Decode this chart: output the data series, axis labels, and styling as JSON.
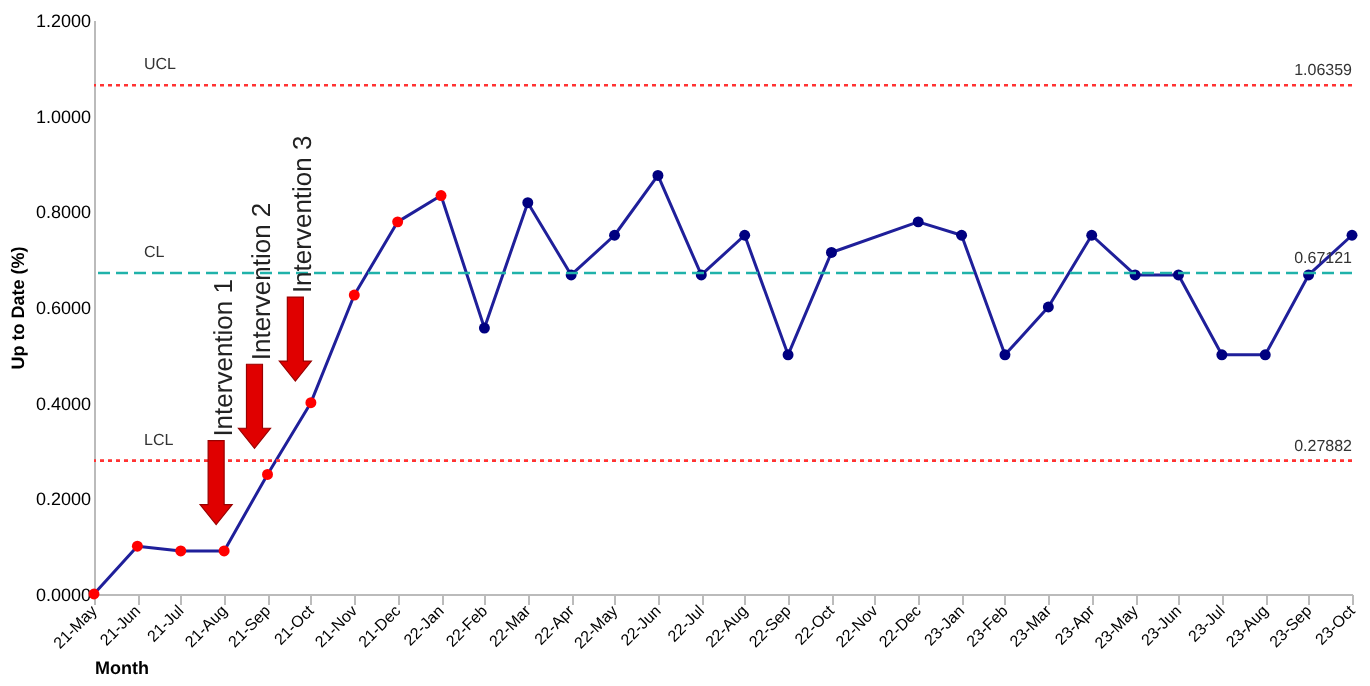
{
  "chart_data": {
    "type": "line",
    "xlabel": "Month",
    "ylabel": "Up to Date (%)",
    "categories": [
      "21-May",
      "21-Jun",
      "21-Jul",
      "21-Aug",
      "21-Sep",
      "21-Oct",
      "21-Nov",
      "21-Dec",
      "22-Jan",
      "22-Feb",
      "22-Mar",
      "22-Apr",
      "22-May",
      "22-Jun",
      "22-Jul",
      "22-Aug",
      "22-Sep",
      "22-Oct",
      "22-Nov",
      "22-Dec",
      "23-Jan",
      "23-Feb",
      "23-Mar",
      "23-Apr",
      "23-May",
      "23-Jun",
      "23-Jul",
      "23-Aug",
      "23-Sep",
      "23-Oct"
    ],
    "series": [
      {
        "color": "#1f1f9a",
        "colors": [
          "#ff0000",
          "#ff0000",
          "#ff0000",
          "#ff0000",
          "#ff0000",
          "#ff0000",
          "#ff0000",
          "#ff0000",
          "#ff0000",
          "#000080",
          "#000080",
          "#000080",
          "#000080",
          "#000080",
          "#000080",
          "#000080",
          "#000080",
          "#000080",
          null,
          "#000080",
          "#000080",
          "#000080",
          "#000080",
          "#000080",
          "#000080",
          "#000080",
          "#000080",
          "#000080",
          "#000080",
          "#000080"
        ],
        "values": [
          0,
          0.1,
          0.09,
          0.09,
          0.25,
          0.4,
          0.625,
          0.778,
          0.833,
          0.556,
          0.818,
          0.667,
          0.75,
          0.875,
          0.667,
          0.75,
          0.5,
          0.714,
          null,
          0.778,
          0.75,
          0.5,
          0.6,
          0.75,
          0.667,
          0.667,
          0.5,
          0.5,
          0.667,
          0.75
        ]
      }
    ],
    "ylim": [
      0,
      1.2
    ],
    "yticks": [
      {
        "value": 0,
        "label": "0.0000"
      },
      {
        "value": 0.2,
        "label": "0.2000"
      },
      {
        "value": 0.4,
        "label": "0.4000"
      },
      {
        "value": 0.6,
        "label": "0.6000"
      },
      {
        "value": 0.8,
        "label": "0.8000"
      },
      {
        "value": 1,
        "label": "1.0000"
      },
      {
        "value": 1.2,
        "label": "1.2000"
      }
    ],
    "ref_lines": [
      {
        "axis": "y",
        "value": 1.06359,
        "label": "UCL",
        "color": "#ff3333",
        "line_style": "dotted"
      },
      {
        "axis": "y",
        "value": 0.67121,
        "label": "CL",
        "color": "#20b2aa",
        "line_style": "dashed"
      },
      {
        "axis": "y",
        "value": 0.27882,
        "label": "LCL",
        "color": "#ff3333",
        "line_style": "dotted"
      }
    ],
    "annotations": [
      {
        "text": "1.06359",
        "x": "23-Oct",
        "y": 1.06359
      },
      {
        "text": "0.67121",
        "x": "23-Oct",
        "y": 0.67121
      },
      {
        "text": "0.27882",
        "x": "23-Oct",
        "y": 0.27882
      },
      "Intervention 1",
      "Intervention 2",
      "Intervention 3"
    ],
    "marker": "circle",
    "grid": false
  }
}
